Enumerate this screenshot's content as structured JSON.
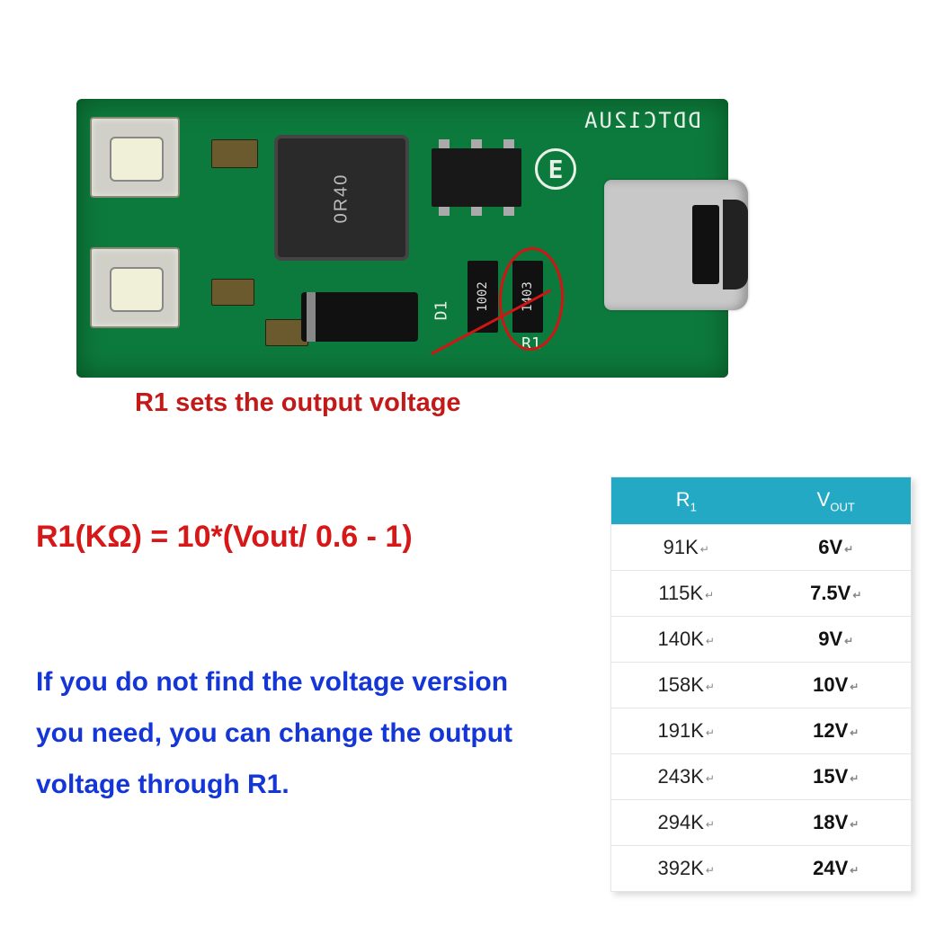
{
  "pcb": {
    "model_silk": "DDTC12UA",
    "e_mark": "E",
    "d1_label": "D1",
    "r1_label": "R1",
    "inductor_marking": "0R40",
    "resistor_markings": [
      "1002",
      "1403"
    ],
    "board_color": "#0d7a3d",
    "pad_color": "#d0d0c8"
  },
  "annotation": {
    "caption": "R1 sets the output voltage",
    "caption_color": "#c21919",
    "circle_color": "#d01515"
  },
  "formula": {
    "text": "R1(KΩ) = 10*(Vout/ 0.6 - 1)",
    "color": "#d61818",
    "fontsize": 34
  },
  "note": {
    "text": "If you do not find the voltage version you need, you can change the output voltage through R1.",
    "color": "#1536d6",
    "fontsize": 30
  },
  "table": {
    "type": "table",
    "header_bg": "#24a9c5",
    "header_fg": "#ffffff",
    "border_color": "#e6e6e6",
    "columns": [
      {
        "main": "R",
        "sub": "1"
      },
      {
        "main": "V",
        "sub": "OUT"
      }
    ],
    "rows": [
      {
        "r1": "91K",
        "vout": "6V"
      },
      {
        "r1": "115K",
        "vout": "7.5V"
      },
      {
        "r1": "140K",
        "vout": "9V"
      },
      {
        "r1": "158K",
        "vout": "10V"
      },
      {
        "r1": "191K",
        "vout": "12V"
      },
      {
        "r1": "243K",
        "vout": "15V"
      },
      {
        "r1": "294K",
        "vout": "18V"
      },
      {
        "r1": "392K",
        "vout": "24V"
      }
    ],
    "row_fontsize": 22,
    "tick_glyph": "↵"
  }
}
